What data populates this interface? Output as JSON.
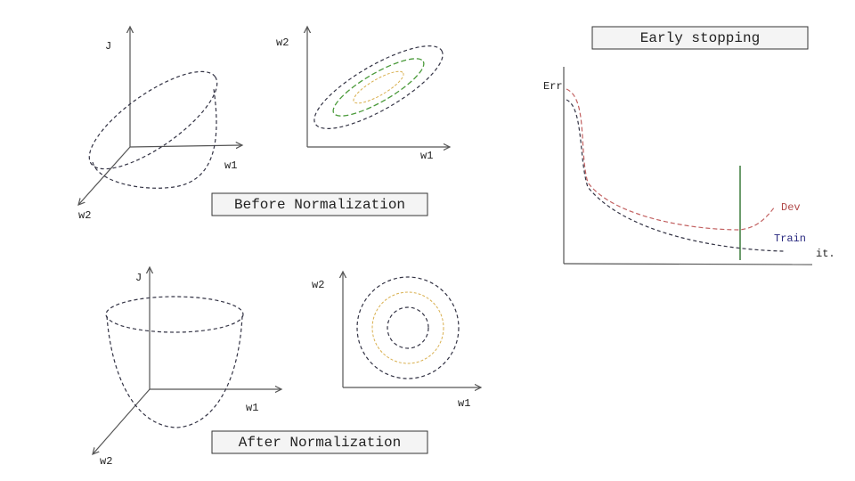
{
  "before": {
    "surface": {
      "axis_j": "J",
      "axis_w1": "w1",
      "axis_w2": "w2"
    },
    "contour": {
      "axis_w2": "w2",
      "axis_w1": "w1"
    },
    "label": "Before Normalization"
  },
  "after": {
    "surface": {
      "axis_j": "J",
      "axis_w1": "w1",
      "axis_w2": "w2"
    },
    "contour": {
      "axis_w2": "w2",
      "axis_w1": "w1"
    },
    "label": "After Normalization"
  },
  "early_stopping": {
    "title": "Early stopping",
    "y_axis": "Err",
    "x_axis": "it.",
    "curves": [
      "Dev",
      "Train"
    ]
  }
}
